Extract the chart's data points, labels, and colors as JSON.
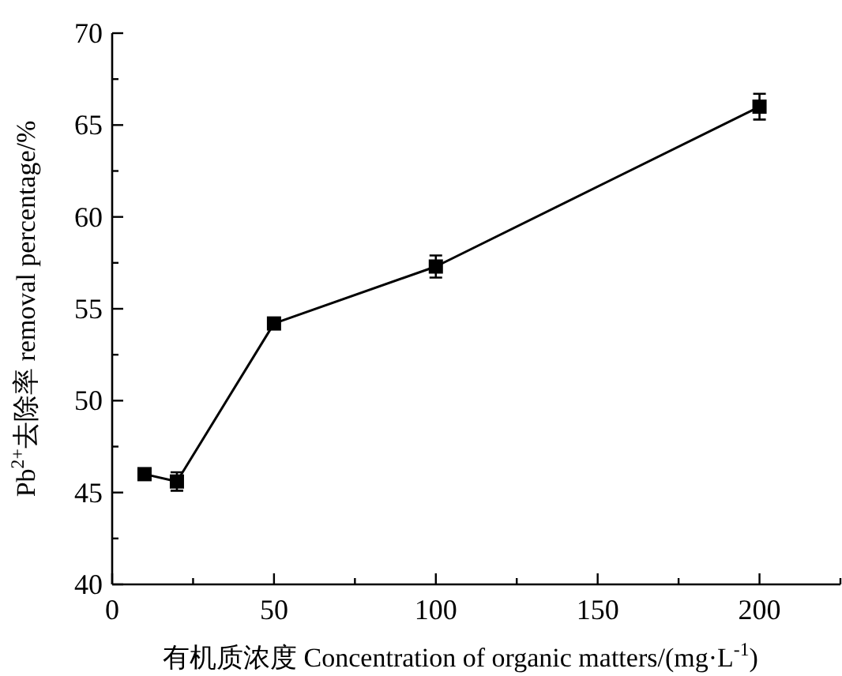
{
  "chart_data": {
    "type": "line",
    "xlabel": "有机质浓度 Concentration of organic matters/(mg·L$^{-1}$)",
    "ylabel": "Pb$^{2+}$去除率 removal percentage/%",
    "x": [
      10,
      20,
      50,
      100,
      200
    ],
    "series": [
      {
        "color": "#000000",
        "values": [
          46.0,
          45.6,
          54.2,
          57.3,
          66.0
        ],
        "errors": [
          null,
          0.5,
          null,
          0.6,
          0.7
        ]
      }
    ],
    "xlim": [
      0,
      225
    ],
    "xticks": [
      0,
      {
        "value": 25,
        "label": null
      },
      50,
      {
        "value": 75,
        "label": null
      },
      100,
      {
        "value": 125,
        "label": null
      },
      150,
      {
        "value": 175,
        "label": null
      },
      200,
      {
        "value": 225,
        "label": null
      }
    ],
    "ylim": [
      40,
      70
    ],
    "yticks": [
      40,
      {
        "value": 42.5,
        "label": null
      },
      45,
      {
        "value": 47.5,
        "label": null
      },
      50,
      {
        "value": 52.5,
        "label": null
      },
      55,
      {
        "value": 57.5,
        "label": null
      },
      60,
      {
        "value": 62.5,
        "label": null
      },
      65,
      {
        "value": 67.5,
        "label": null
      },
      70
    ],
    "marker": "square",
    "line_style": "solid",
    "grid": false
  }
}
